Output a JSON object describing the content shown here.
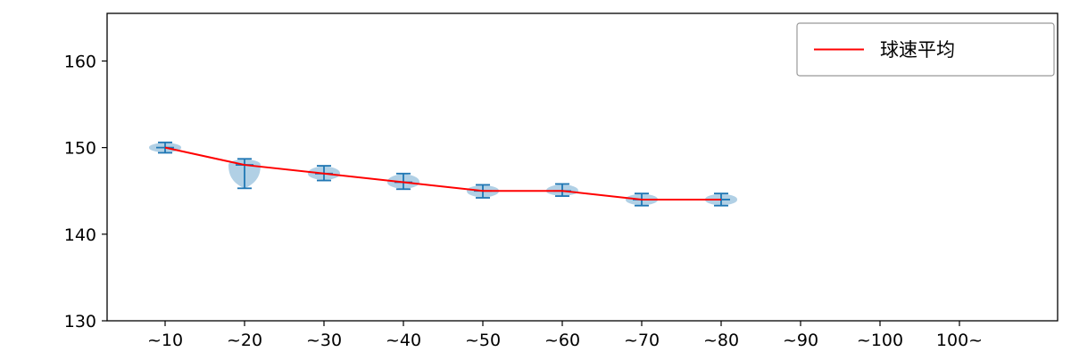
{
  "chart_data": {
    "type": "violin",
    "title": "",
    "xlabel": "",
    "ylabel": "",
    "categories": [
      "~10",
      "~20",
      "~30",
      "~40",
      "~50",
      "~60",
      "~70",
      "~80",
      "~90",
      "~100",
      "100~"
    ],
    "yticks": [
      130,
      140,
      150,
      160
    ],
    "ylim": [
      130,
      165.5
    ],
    "grid": false,
    "legend": {
      "label": "球速平均",
      "position": "upper right"
    },
    "series": [
      {
        "name": "球速平均",
        "type": "line",
        "color": "#ff0000",
        "values": [
          150,
          148,
          147,
          146,
          145,
          145,
          144,
          144,
          null,
          null,
          null
        ]
      }
    ],
    "violins": [
      {
        "category": "~10",
        "mean": 150,
        "min": 149.4,
        "max": 150.6
      },
      {
        "category": "~20",
        "mean": 148,
        "min": 145.3,
        "max": 148.7
      },
      {
        "category": "~30",
        "mean": 147,
        "min": 146.2,
        "max": 147.9
      },
      {
        "category": "~40",
        "mean": 146,
        "min": 145.2,
        "max": 147.0
      },
      {
        "category": "~50",
        "mean": 145,
        "min": 144.2,
        "max": 145.7
      },
      {
        "category": "~60",
        "mean": 145,
        "min": 144.4,
        "max": 145.8
      },
      {
        "category": "~70",
        "mean": 144,
        "min": 143.3,
        "max": 144.7
      },
      {
        "category": "~80",
        "mean": 144,
        "min": 143.3,
        "max": 144.7
      }
    ],
    "colors": {
      "line": "#ff0000",
      "violin_fill": "#1f77b4",
      "violin_opacity": 0.35,
      "whisker": "#2077b4",
      "axis": "#000000",
      "legend_border": "#999999"
    }
  }
}
